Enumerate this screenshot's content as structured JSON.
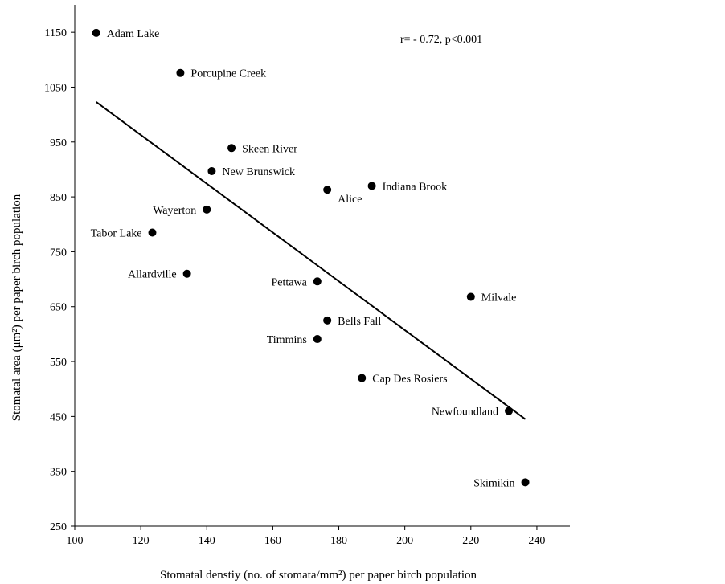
{
  "chart_data": {
    "type": "scatter",
    "title": "",
    "xlabel": "Stomatal denstiy (no. of stomata/mm²) per paper birch population",
    "ylabel": "Stomatal area (μm²) per paper birch population",
    "xlim": [
      100,
      250
    ],
    "ylim": [
      250,
      1200
    ],
    "xticks": [
      100,
      120,
      140,
      160,
      180,
      200,
      220,
      240
    ],
    "yticks": [
      250,
      350,
      450,
      550,
      650,
      750,
      850,
      950,
      1050,
      1150
    ],
    "grid": false,
    "annotation": "r= - 0.72, p<0.001",
    "points": [
      {
        "label": "Adam Lake",
        "x": 106.5,
        "y": 1149,
        "label_side": "right"
      },
      {
        "label": "Porcupine  Creek",
        "x": 132,
        "y": 1076,
        "label_side": "right"
      },
      {
        "label": "Skeen River",
        "x": 147.5,
        "y": 939,
        "label_side": "right"
      },
      {
        "label": "New Brunswick",
        "x": 141.5,
        "y": 897,
        "label_side": "right"
      },
      {
        "label": "Alice",
        "x": 176.5,
        "y": 863,
        "label_side": "below-right"
      },
      {
        "label": "Indiana Brook",
        "x": 190,
        "y": 870,
        "label_side": "right"
      },
      {
        "label": "Wayerton",
        "x": 140,
        "y": 827,
        "label_side": "left"
      },
      {
        "label": "Tabor Lake",
        "x": 123.5,
        "y": 785,
        "label_side": "left"
      },
      {
        "label": "Allardville",
        "x": 134,
        "y": 710,
        "label_side": "left"
      },
      {
        "label": "Pettawa",
        "x": 173.5,
        "y": 696,
        "label_side": "left"
      },
      {
        "label": "Milvale",
        "x": 220,
        "y": 668,
        "label_side": "right"
      },
      {
        "label": "Bells Fall",
        "x": 176.5,
        "y": 625,
        "label_side": "right"
      },
      {
        "label": "Timmins",
        "x": 173.5,
        "y": 591,
        "label_side": "left"
      },
      {
        "label": "Cap Des Rosiers",
        "x": 187,
        "y": 520,
        "label_side": "right"
      },
      {
        "label": "Newfoundland",
        "x": 231.5,
        "y": 460,
        "label_side": "left"
      },
      {
        "label": "Skimikin",
        "x": 236.5,
        "y": 330,
        "label_side": "left"
      }
    ],
    "trendline": {
      "x": [
        106.5,
        236.5
      ],
      "y": [
        1023,
        445
      ]
    }
  }
}
